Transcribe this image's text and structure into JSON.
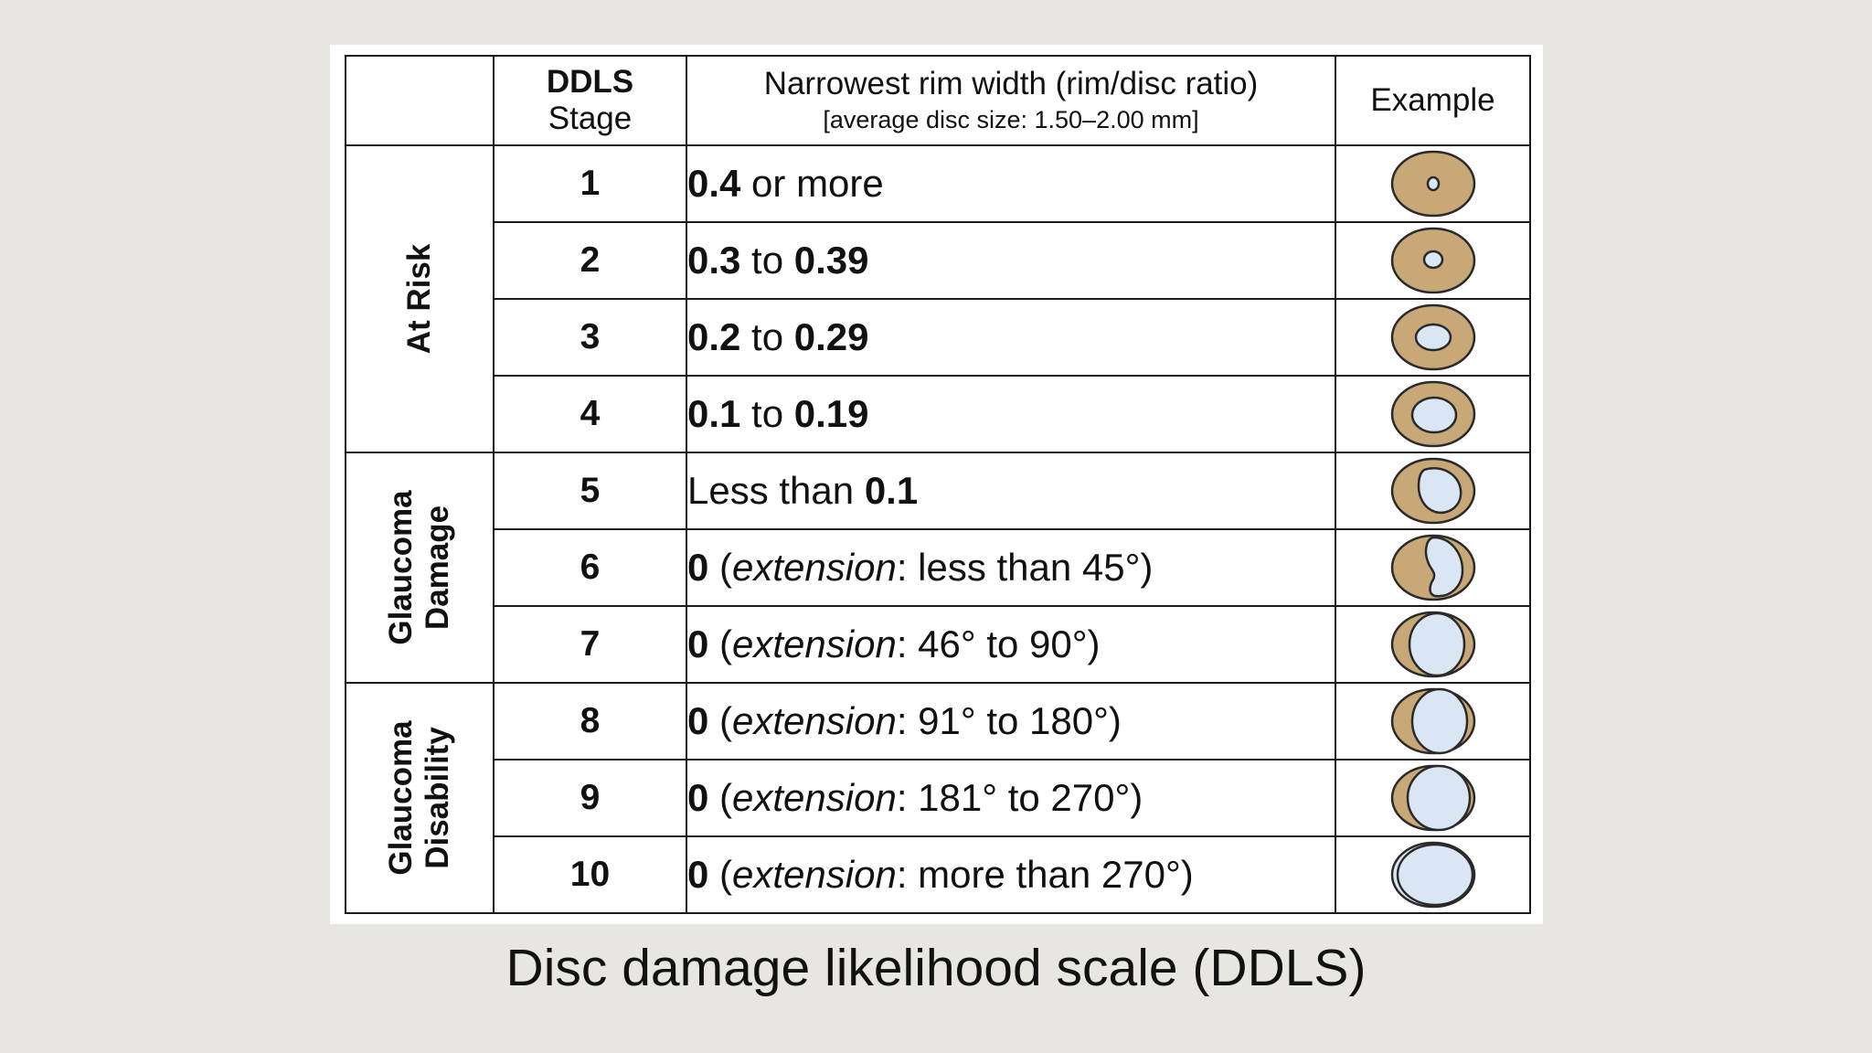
{
  "header": {
    "stage_l1": "DDLS",
    "stage_l2": "Stage",
    "rim_l1": "Narrowest rim width (rim/disc ratio)",
    "rim_l2": "[average disc size: 1.50–2.00 mm]",
    "example": "Example"
  },
  "groups": {
    "at_risk": "At Risk",
    "damage_l1": "Glaucoma",
    "damage_l2": "Damage",
    "disability_l1": "Glaucoma",
    "disability_l2": "Disability"
  },
  "rows": [
    {
      "stage": "1",
      "a": "0.4",
      "b": " or more",
      "c": "",
      "d": "",
      "e": ""
    },
    {
      "stage": "2",
      "a": "0.3",
      "b": " to ",
      "c": "0.39",
      "d": "",
      "e": ""
    },
    {
      "stage": "3",
      "a": "0.2",
      "b": " to ",
      "c": "0.29",
      "d": "",
      "e": ""
    },
    {
      "stage": "4",
      "a": "0.1",
      "b": " to ",
      "c": "0.19",
      "d": "",
      "e": ""
    },
    {
      "stage": "5",
      "a": "",
      "b": "Less than ",
      "c": "0.1",
      "d": "",
      "e": ""
    },
    {
      "stage": "6",
      "a": "0",
      "b": " (",
      "c": "",
      "d": "extension",
      "e": ": less than 45°)"
    },
    {
      "stage": "7",
      "a": "0",
      "b": " (",
      "c": "",
      "d": "extension",
      "e": ": 46° to 90°)"
    },
    {
      "stage": "8",
      "a": "0",
      "b": " (",
      "c": "",
      "d": "extension",
      "e": ": 91° to 180°)"
    },
    {
      "stage": "9",
      "a": "0",
      "b": " (",
      "c": "",
      "d": "extension",
      "e": ": 181° to 270°)"
    },
    {
      "stage": "10",
      "a": "0",
      "b": " (",
      "c": "",
      "d": "extension",
      "e": ": more than 270°)"
    }
  ],
  "caption": "Disc damage likelihood scale (DDLS)",
  "colors": {
    "rim": "#c8a877",
    "cup": "#dbe6f5",
    "stroke": "#2a2a2a"
  }
}
